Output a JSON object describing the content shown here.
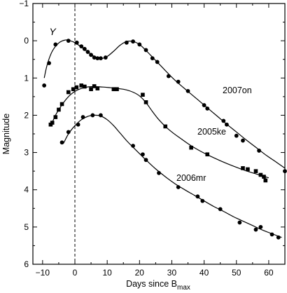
{
  "chart_data": {
    "type": "scatter",
    "title": "",
    "xlabel": "Days since B",
    "xlabel_subscript": "max",
    "ylabel": "Magnitude",
    "xlim": [
      -13,
      65
    ],
    "ylim": [
      6,
      -1
    ],
    "y_inverted": true,
    "xticks": [
      -10,
      0,
      10,
      20,
      30,
      40,
      50,
      60
    ],
    "yticks": [
      -1,
      0,
      1,
      2,
      3,
      4,
      5,
      6
    ],
    "grid": false,
    "legend": "none",
    "band_label": "Y",
    "reference_line": {
      "x": 0,
      "style": "dashed"
    },
    "series": [
      {
        "name": "2007on",
        "marker": "circle",
        "points": [
          [
            -9.5,
            1.2
          ],
          [
            -8,
            0.6
          ],
          [
            -6,
            0.1
          ],
          [
            -2,
            0.0
          ],
          [
            0.6,
            0.05
          ],
          [
            2,
            0.15
          ],
          [
            3,
            0.22
          ],
          [
            4,
            0.3
          ],
          [
            5,
            0.38
          ],
          [
            6,
            0.45
          ],
          [
            7,
            0.47
          ],
          [
            8,
            0.47
          ],
          [
            9.5,
            0.45
          ],
          [
            16,
            0.05
          ],
          [
            18,
            0.02
          ],
          [
            20,
            0.1
          ],
          [
            22,
            0.25
          ],
          [
            24,
            0.47
          ],
          [
            25.5,
            0.57
          ],
          [
            29,
            0.95
          ],
          [
            32,
            1.1
          ],
          [
            35,
            1.35
          ],
          [
            40,
            1.73
          ],
          [
            41,
            1.82
          ],
          [
            46,
            2.15
          ],
          [
            47,
            2.25
          ],
          [
            50,
            2.55
          ],
          [
            52,
            2.68
          ],
          [
            57,
            2.95
          ],
          [
            65,
            3.5
          ]
        ],
        "curve": [
          [
            -9.5,
            1.0
          ],
          [
            -8.5,
            0.62
          ],
          [
            -7,
            0.28
          ],
          [
            -5,
            0.06
          ],
          [
            -3,
            -0.02
          ],
          [
            -1.5,
            0.0
          ],
          [
            0,
            0.05
          ],
          [
            2,
            0.17
          ],
          [
            4,
            0.3
          ],
          [
            6,
            0.42
          ],
          [
            8,
            0.48
          ],
          [
            10,
            0.42
          ],
          [
            12,
            0.28
          ],
          [
            14,
            0.12
          ],
          [
            16,
            0.02
          ],
          [
            18,
            0.02
          ],
          [
            20,
            0.1
          ],
          [
            22,
            0.26
          ],
          [
            24,
            0.44
          ],
          [
            26,
            0.62
          ],
          [
            28,
            0.8
          ],
          [
            30,
            0.98
          ],
          [
            32,
            1.14
          ],
          [
            35,
            1.36
          ],
          [
            38,
            1.58
          ],
          [
            41,
            1.8
          ],
          [
            44,
            2.02
          ],
          [
            47,
            2.24
          ],
          [
            50,
            2.45
          ],
          [
            53,
            2.66
          ],
          [
            56,
            2.86
          ],
          [
            59,
            3.06
          ],
          [
            62,
            3.24
          ],
          [
            65,
            3.42
          ]
        ]
      },
      {
        "name": "2005ke",
        "marker": "square",
        "points": [
          [
            -7.5,
            2.25
          ],
          [
            -7,
            2.2
          ],
          [
            -6,
            2.05
          ],
          [
            -5,
            1.85
          ],
          [
            -4,
            1.7
          ],
          [
            -2,
            1.38
          ],
          [
            -0.5,
            1.3
          ],
          [
            0.5,
            1.25
          ],
          [
            2,
            1.2
          ],
          [
            3,
            1.23
          ],
          [
            5,
            1.3
          ],
          [
            6,
            1.22
          ],
          [
            7,
            1.28
          ],
          [
            12,
            1.3
          ],
          [
            13,
            1.3
          ],
          [
            21,
            1.45
          ],
          [
            22,
            1.65
          ],
          [
            28,
            2.3
          ],
          [
            36,
            2.87
          ],
          [
            41,
            3.05
          ],
          [
            52,
            3.42
          ],
          [
            53.5,
            3.45
          ],
          [
            56,
            3.5
          ],
          [
            57.5,
            3.6
          ],
          [
            58.5,
            3.65
          ],
          [
            59,
            3.75
          ]
        ],
        "curve": [
          [
            -7.5,
            2.3
          ],
          [
            -6,
            2.0
          ],
          [
            -4,
            1.72
          ],
          [
            -2,
            1.5
          ],
          [
            0,
            1.36
          ],
          [
            2,
            1.28
          ],
          [
            4,
            1.24
          ],
          [
            6,
            1.23
          ],
          [
            8,
            1.24
          ],
          [
            10,
            1.25
          ],
          [
            12,
            1.27
          ],
          [
            14,
            1.29
          ],
          [
            16,
            1.32
          ],
          [
            18,
            1.38
          ],
          [
            20,
            1.48
          ],
          [
            22,
            1.66
          ],
          [
            24,
            1.9
          ],
          [
            26,
            2.12
          ],
          [
            28,
            2.3
          ],
          [
            30,
            2.45
          ],
          [
            33,
            2.64
          ],
          [
            36,
            2.82
          ],
          [
            39,
            2.97
          ],
          [
            42,
            3.1
          ],
          [
            45,
            3.22
          ],
          [
            48,
            3.33
          ],
          [
            51,
            3.43
          ],
          [
            54,
            3.52
          ],
          [
            57,
            3.6
          ],
          [
            60,
            3.68
          ]
        ]
      },
      {
        "name": "2006mr",
        "marker": "circle",
        "points": [
          [
            -4,
            2.73
          ],
          [
            -2,
            2.45
          ],
          [
            1,
            2.25
          ],
          [
            2.5,
            2.05
          ],
          [
            5.5,
            2.0
          ],
          [
            8,
            2.0
          ],
          [
            18,
            2.82
          ],
          [
            21,
            3.05
          ],
          [
            22,
            3.2
          ],
          [
            26,
            3.55
          ],
          [
            32,
            3.93
          ],
          [
            38,
            4.18
          ],
          [
            39.5,
            4.3
          ],
          [
            45,
            4.52
          ],
          [
            51,
            4.88
          ],
          [
            56,
            5.07
          ],
          [
            57.5,
            5.0
          ],
          [
            61,
            5.2
          ],
          [
            63,
            5.28
          ]
        ],
        "curve": [
          [
            -3.5,
            2.75
          ],
          [
            -2,
            2.5
          ],
          [
            0,
            2.28
          ],
          [
            2,
            2.12
          ],
          [
            4,
            2.03
          ],
          [
            6,
            2.0
          ],
          [
            8,
            2.02
          ],
          [
            10,
            2.12
          ],
          [
            12,
            2.28
          ],
          [
            14,
            2.48
          ],
          [
            16,
            2.68
          ],
          [
            18,
            2.86
          ],
          [
            20,
            3.03
          ],
          [
            22,
            3.2
          ],
          [
            25,
            3.44
          ],
          [
            28,
            3.65
          ],
          [
            31,
            3.84
          ],
          [
            34,
            4.0
          ],
          [
            37,
            4.15
          ],
          [
            40,
            4.3
          ],
          [
            43,
            4.45
          ],
          [
            46,
            4.58
          ],
          [
            49,
            4.72
          ],
          [
            52,
            4.84
          ],
          [
            55,
            4.96
          ],
          [
            58,
            5.08
          ],
          [
            61,
            5.18
          ],
          [
            64,
            5.28
          ]
        ]
      }
    ]
  }
}
